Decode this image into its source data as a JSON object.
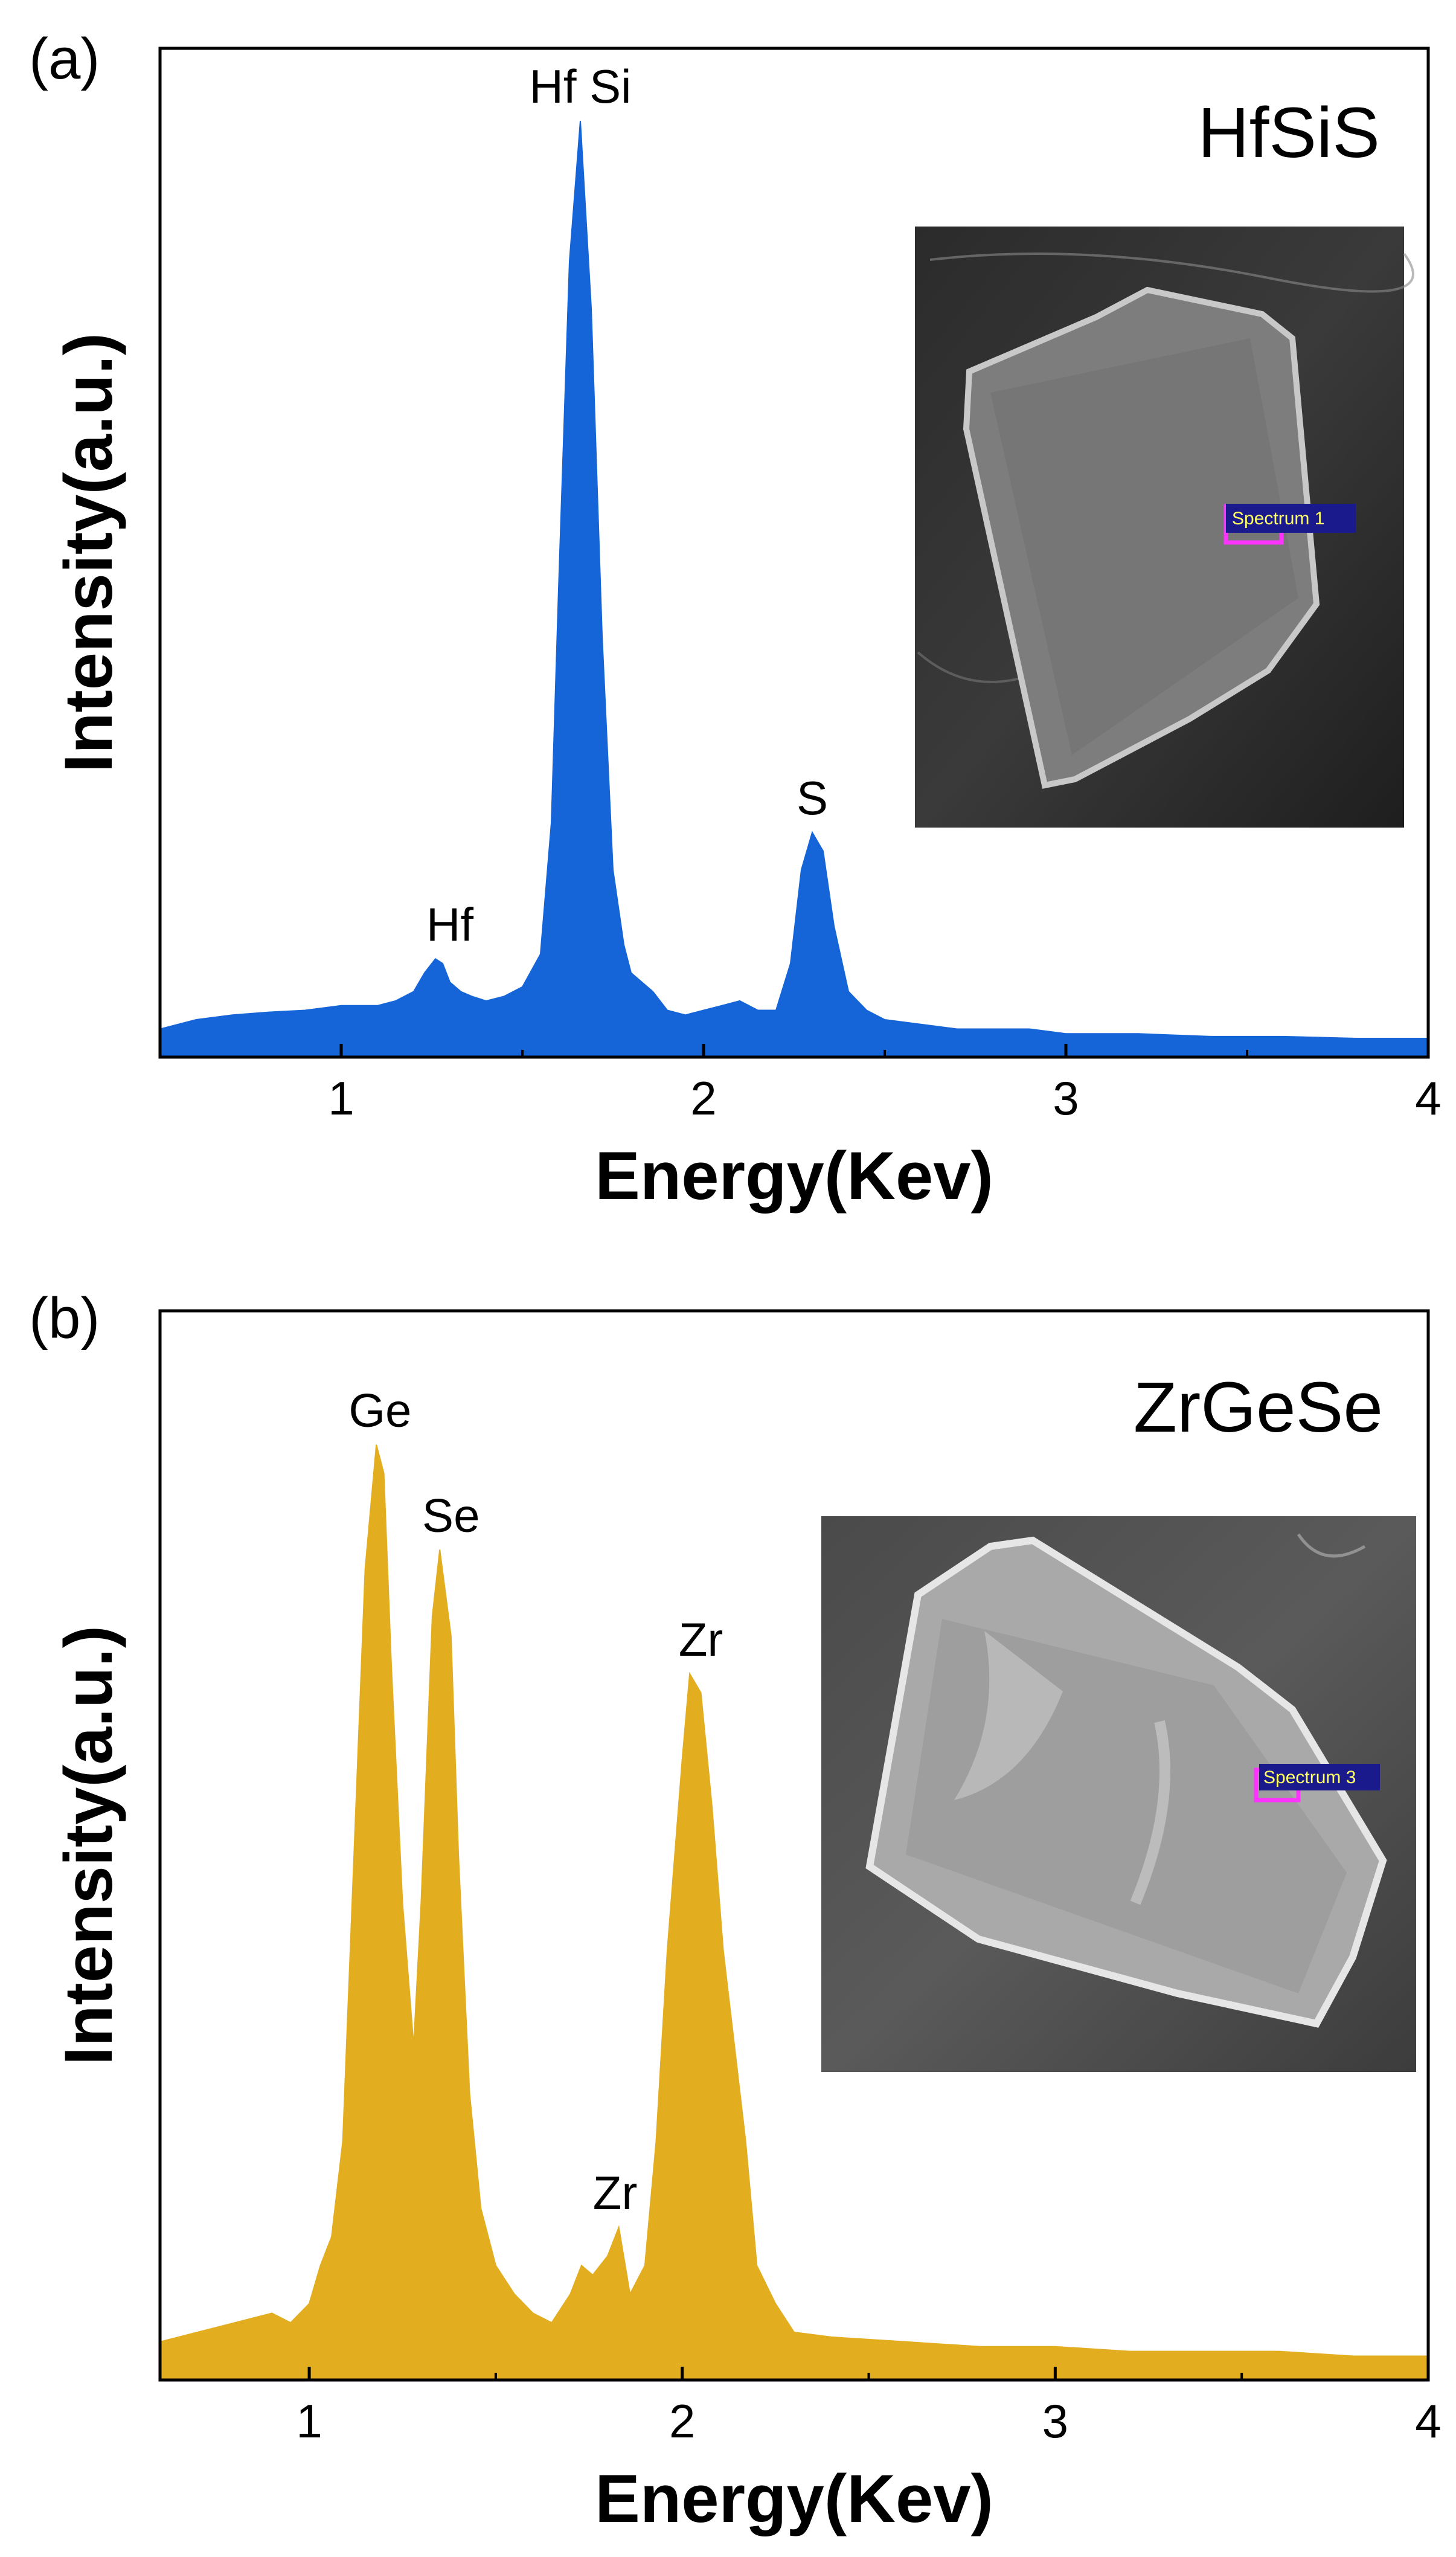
{
  "chart_data": [
    {
      "type": "area",
      "panel_label": "(a)",
      "compound": "HfSiS",
      "xlabel": "Energy(Kev)",
      "ylabel": "Intensity(a.u.)",
      "xlim": [
        0.5,
        4
      ],
      "ylim": [
        0,
        100
      ],
      "xticks": [
        "1",
        "2",
        "3",
        "4"
      ],
      "color": "#1565d8",
      "x": [
        0.5,
        0.6,
        0.7,
        0.8,
        0.9,
        1.0,
        1.1,
        1.15,
        1.2,
        1.23,
        1.26,
        1.28,
        1.3,
        1.33,
        1.36,
        1.4,
        1.45,
        1.5,
        1.55,
        1.58,
        1.6,
        1.63,
        1.66,
        1.69,
        1.72,
        1.75,
        1.78,
        1.8,
        1.83,
        1.86,
        1.9,
        1.95,
        2.0,
        2.05,
        2.1,
        2.15,
        2.2,
        2.24,
        2.27,
        2.3,
        2.33,
        2.36,
        2.4,
        2.45,
        2.5,
        2.6,
        2.7,
        2.8,
        2.9,
        3.0,
        3.2,
        3.4,
        3.6,
        3.8,
        4.0
      ],
      "values": [
        3,
        4,
        4.5,
        4.8,
        5,
        5.5,
        5.5,
        6,
        7,
        9,
        10.5,
        10,
        8,
        7,
        6.5,
        6,
        6.5,
        7.5,
        11,
        25,
        50,
        85,
        100,
        80,
        45,
        20,
        12,
        9,
        8,
        7,
        5,
        4.5,
        5,
        5.5,
        6,
        5,
        5,
        10,
        20,
        24,
        22,
        14,
        7,
        5,
        4,
        3.5,
        3,
        3,
        3,
        2.5,
        2.5,
        2.2,
        2.2,
        2,
        2
      ],
      "peaks": [
        {
          "text": "Hf",
          "x": 1.3,
          "y": 10.5
        },
        {
          "text": "Hf Si",
          "x": 1.66,
          "y": 100
        },
        {
          "text": "S",
          "x": 2.3,
          "y": 24
        }
      ],
      "inset": {
        "tag": "Spectrum 1"
      }
    },
    {
      "type": "area",
      "panel_label": "(b)",
      "compound": "ZrGeSe",
      "xlabel": "Energy(Kev)",
      "ylabel": "Intensity(a.u.)",
      "xlim": [
        0.6,
        4
      ],
      "ylim": [
        0,
        100
      ],
      "xticks": [
        "1",
        "2",
        "3",
        "4"
      ],
      "color": "#e3ad20",
      "x": [
        0.6,
        0.7,
        0.8,
        0.9,
        0.95,
        1.0,
        1.03,
        1.06,
        1.09,
        1.12,
        1.15,
        1.18,
        1.2,
        1.22,
        1.25,
        1.28,
        1.3,
        1.33,
        1.35,
        1.38,
        1.4,
        1.43,
        1.46,
        1.5,
        1.55,
        1.6,
        1.65,
        1.7,
        1.73,
        1.76,
        1.8,
        1.83,
        1.86,
        1.9,
        1.93,
        1.96,
        2.0,
        2.02,
        2.05,
        2.08,
        2.11,
        2.14,
        2.17,
        2.2,
        2.25,
        2.3,
        2.4,
        2.6,
        2.8,
        3.0,
        3.2,
        3.4,
        3.6,
        3.8,
        4.0
      ],
      "values": [
        4,
        5,
        6,
        7,
        6,
        8,
        12,
        15,
        25,
        55,
        85,
        98,
        95,
        75,
        50,
        35,
        50,
        80,
        87,
        78,
        55,
        30,
        18,
        12,
        9,
        7,
        6,
        9,
        12,
        11,
        13,
        16,
        9,
        12,
        25,
        45,
        65,
        74,
        72,
        60,
        45,
        35,
        25,
        12,
        8,
        5,
        4.5,
        4,
        3.5,
        3.5,
        3,
        3,
        3,
        2.5,
        2.5
      ],
      "peaks": [
        {
          "text": "Ge",
          "x": 1.19,
          "y": 98
        },
        {
          "text": "Se",
          "x": 1.38,
          "y": 87
        },
        {
          "text": "Zr",
          "x": 1.82,
          "y": 16
        },
        {
          "text": "Zr",
          "x": 2.05,
          "y": 74
        }
      ],
      "inset": {
        "tag": "Spectrum 3"
      }
    }
  ]
}
